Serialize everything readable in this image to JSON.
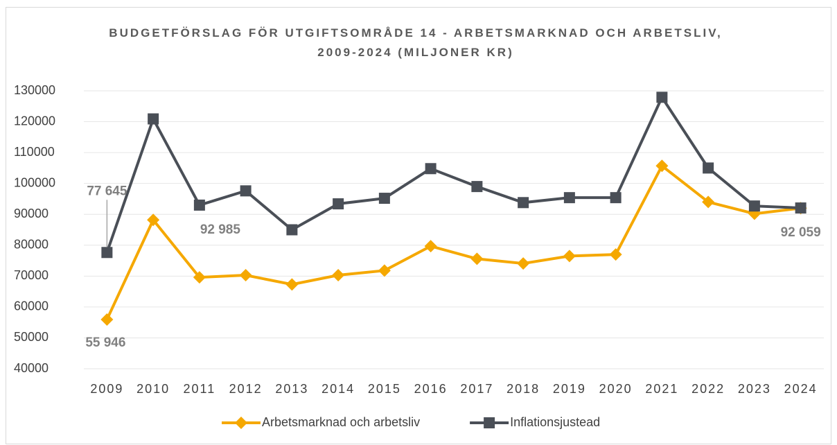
{
  "chart_data": {
    "type": "line",
    "title": "BUDGETFÖRSLAG FÖR UTGIFTSOMRÅDE 14 - ARBETSMARKNAD OCH ARBETSLIV, 2009-2024 (MILJONER KR)",
    "categories": [
      "2009",
      "2010",
      "2011",
      "2012",
      "2013",
      "2014",
      "2015",
      "2016",
      "2017",
      "2018",
      "2019",
      "2020",
      "2021",
      "2022",
      "2023",
      "2024"
    ],
    "series": [
      {
        "name": "Arbetsmarknad och arbetsliv",
        "color": "#f5a800",
        "marker": "diamond",
        "values": [
          55946,
          88200,
          69600,
          70300,
          67300,
          70300,
          71800,
          79700,
          75600,
          74100,
          76500,
          77000,
          105700,
          94000,
          90200,
          92000
        ],
        "value_labels": [
          "55 946",
          null,
          null,
          null,
          null,
          null,
          null,
          null,
          null,
          null,
          null,
          null,
          null,
          null,
          null,
          null
        ]
      },
      {
        "name": "Inflationsjustead",
        "color": "#4a4f57",
        "marker": "square",
        "values": [
          77645,
          120900,
          92985,
          97600,
          85000,
          93400,
          95200,
          104800,
          99000,
          93800,
          95400,
          95400,
          127900,
          105000,
          92700,
          92059
        ],
        "value_labels": [
          "77 645",
          null,
          "92 985",
          null,
          null,
          null,
          null,
          null,
          null,
          null,
          null,
          null,
          null,
          null,
          null,
          "92 059"
        ]
      }
    ],
    "ylim": [
      40000,
      130000
    ],
    "yticks": [
      40000,
      50000,
      60000,
      70000,
      80000,
      90000,
      100000,
      110000,
      120000,
      130000
    ],
    "grid": true,
    "legend": "bottom"
  }
}
